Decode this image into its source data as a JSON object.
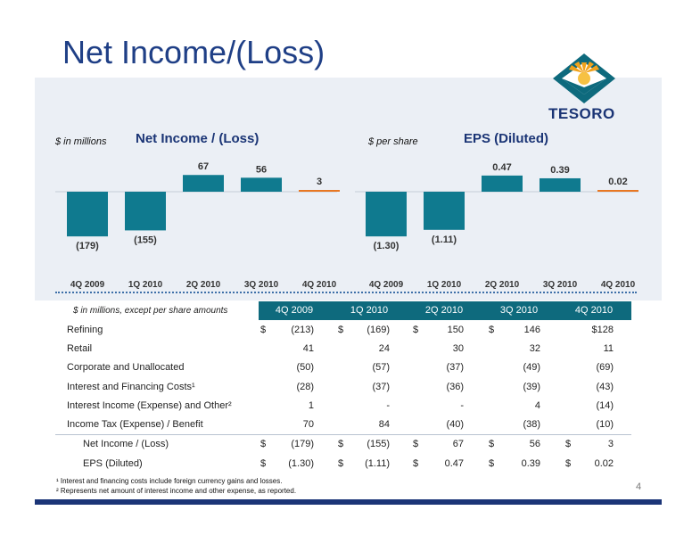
{
  "slide": {
    "title": "Net Income/(Loss)",
    "page_number": "4",
    "logo_text": "TESORO"
  },
  "charts": {
    "left": {
      "subtitle": "$ in millions",
      "title": "Net Income / (Loss)"
    },
    "right": {
      "subtitle": "$ per share",
      "title": "EPS (Diluted)"
    }
  },
  "chart_data": [
    {
      "type": "bar",
      "title": "Net Income / (Loss)",
      "unit_note": "$ in millions",
      "categories": [
        "4Q 2009",
        "1Q 2010",
        "2Q 2010",
        "3Q 2010",
        "4Q 2010"
      ],
      "values": [
        -179,
        -155,
        67,
        56,
        3
      ],
      "labels": [
        "(179)",
        "(155)",
        "67",
        "56",
        "3"
      ],
      "colors": [
        "#0f7a8f",
        "#0f7a8f",
        "#0f7a8f",
        "#0f7a8f",
        "#e87722"
      ]
    },
    {
      "type": "bar",
      "title": "EPS (Diluted)",
      "unit_note": "$ per share",
      "categories": [
        "4Q 2009",
        "1Q 2010",
        "2Q 2010",
        "3Q 2010",
        "4Q 2010"
      ],
      "values": [
        -1.3,
        -1.11,
        0.47,
        0.39,
        0.02
      ],
      "labels": [
        "(1.30)",
        "(1.11)",
        "0.47",
        "0.39",
        "0.02"
      ],
      "colors": [
        "#0f7a8f",
        "#0f7a8f",
        "#0f7a8f",
        "#0f7a8f",
        "#e87722"
      ]
    }
  ],
  "table": {
    "caption": "$ in millions, except per share amounts",
    "headers": [
      "4Q 2009",
      "1Q 2010",
      "2Q 2010",
      "3Q 2010",
      "4Q 2010"
    ],
    "rows": [
      {
        "label": "Refining",
        "dollars": [
          "$",
          "$",
          "$",
          "$",
          ""
        ],
        "values": [
          "(213)",
          "(169)",
          "150",
          "146",
          "$128"
        ]
      },
      {
        "label": "Retail",
        "dollars": [
          "",
          "",
          "",
          "",
          ""
        ],
        "values": [
          "41",
          "24",
          "30",
          "32",
          "11"
        ]
      },
      {
        "label": "Corporate and Unallocated",
        "dollars": [
          "",
          "",
          "",
          "",
          ""
        ],
        "values": [
          "(50)",
          "(57)",
          "(37)",
          "(49)",
          "(69)"
        ]
      },
      {
        "label": "Interest and Financing Costs¹",
        "dollars": [
          "",
          "",
          "",
          "",
          ""
        ],
        "values": [
          "(28)",
          "(37)",
          "(36)",
          "(39)",
          "(43)"
        ]
      },
      {
        "label": "Interest Income (Expense) and Other²",
        "dollars": [
          "",
          "",
          "",
          "",
          ""
        ],
        "values": [
          "1",
          "-",
          "-",
          "4",
          "(14)"
        ]
      },
      {
        "label": "Income Tax (Expense) / Benefit",
        "dollars": [
          "",
          "",
          "",
          "",
          ""
        ],
        "values": [
          "70",
          "84",
          "(40)",
          "(38)",
          "(10)"
        ]
      },
      {
        "label": "Net Income / (Loss)",
        "indent": true,
        "dollars": [
          "$",
          "$",
          "$",
          "$",
          "$"
        ],
        "values": [
          "(179)",
          "(155)",
          "67",
          "56",
          "3"
        ]
      },
      {
        "label": "EPS (Diluted)",
        "indent": true,
        "dollars": [
          "$",
          "$",
          "$",
          "$",
          "$"
        ],
        "values": [
          "(1.30)",
          "(1.11)",
          "0.47",
          "0.39",
          "0.02"
        ]
      }
    ]
  },
  "footnotes": [
    "¹ Interest and financing costs include foreign currency gains and losses.",
    "² Represents net amount of interest income and other expense, as reported."
  ],
  "colors": {
    "title_blue": "#1f3f86",
    "teal": "#0e6a7d",
    "orange": "#e87722",
    "navy": "#1b3577"
  }
}
